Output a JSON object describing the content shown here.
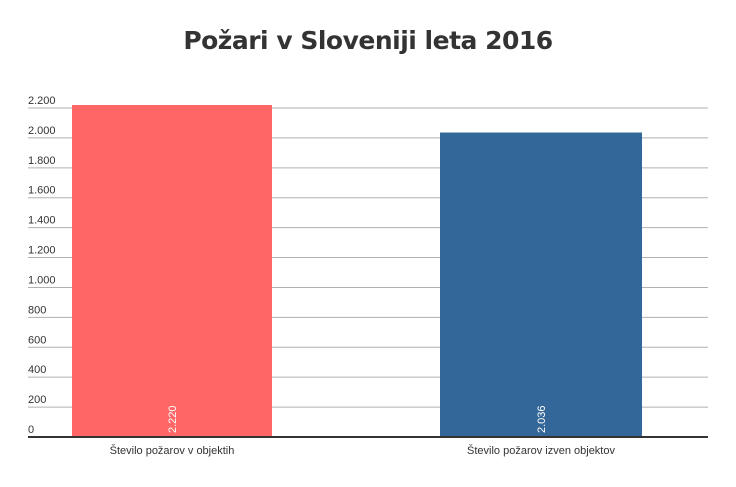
{
  "chart_data": {
    "type": "bar",
    "title": "Požari v Sloveniji leta 2016",
    "categories": [
      "Število požarov v objektih",
      "Število požarov izven objektov"
    ],
    "values": [
      2220,
      2036
    ],
    "value_labels": [
      "2.220",
      "2.036"
    ],
    "colors": [
      "#ff6666",
      "#336699"
    ],
    "xlabel": "",
    "ylabel": "",
    "ylim": [
      0,
      2200
    ],
    "yticks": [
      0,
      200,
      400,
      600,
      800,
      1000,
      1200,
      1400,
      1600,
      1800,
      2000,
      2200
    ],
    "ytick_labels": [
      "0",
      "200",
      "400",
      "600",
      "800",
      "1.000",
      "1.200",
      "1.400",
      "1.600",
      "1.800",
      "2.000",
      "2.200"
    ],
    "grid": true,
    "legend": "none"
  }
}
